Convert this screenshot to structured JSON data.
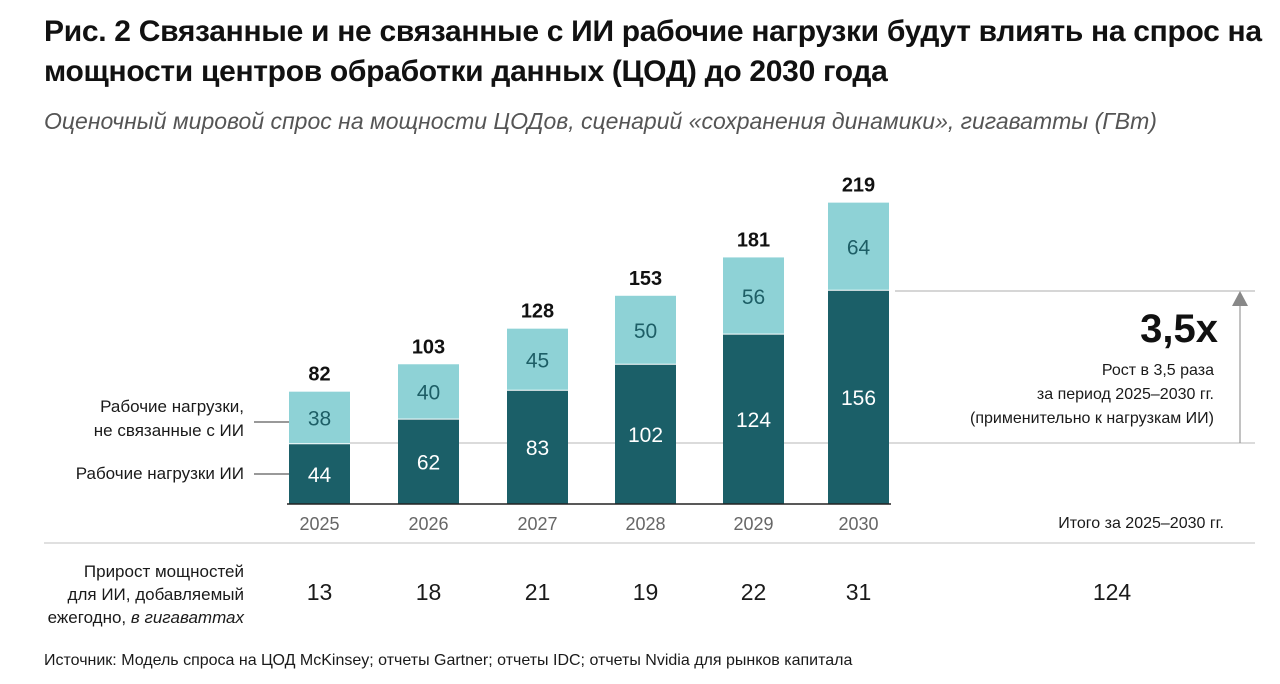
{
  "title": "Рис. 2 Связанные и не связанные с ИИ рабочие нагрузки будут влиять на спрос на мощности центров обработки данных (ЦОД) до 2030 года",
  "subtitle": "Оценочный мировой спрос на мощности ЦОДов, сценарий «сохранения динамики», гигаватты (ГВт)",
  "colors": {
    "ai": "#1b5f68",
    "non_ai": "#8ed2d6"
  },
  "chart_data": {
    "type": "bar",
    "stacked": true,
    "title": "Рис. 2 Связанные и не связанные с ИИ рабочие нагрузки будут влиять на спрос на мощности центров обработки данных (ЦОД) до 2030 года",
    "subtitle": "Оценочный мировой спрос на мощности ЦОДов, сценарий «сохранения динамики», гигаватты (ГВт)",
    "categories": [
      "2025",
      "2026",
      "2027",
      "2028",
      "2029",
      "2030"
    ],
    "series": [
      {
        "name": "Рабочие нагрузки ИИ",
        "values": [
          44,
          62,
          83,
          102,
          124,
          156
        ]
      },
      {
        "name": "Рабочие нагрузки, не связанные с ИИ",
        "values": [
          38,
          40,
          45,
          50,
          56,
          64
        ]
      }
    ],
    "totals": [
      82,
      103,
      128,
      153,
      181,
      219
    ],
    "ylim": [
      0,
      219
    ],
    "xlabel": "",
    "ylabel": "ГВт",
    "grid": false,
    "legend": [
      "Рабочие нагрузки,\nне связанные с ИИ",
      "Рабочие нагрузки ИИ"
    ],
    "legend_position": "left",
    "annotation": {
      "headline": "3,5x",
      "lines": [
        "Рост в 3,5 раза",
        "за период 2025–2030 гг.",
        "(применительно к нагрузкам ИИ)"
      ]
    }
  },
  "legend_labels": {
    "non_ai_line1": "Рабочие нагрузки,",
    "non_ai_line2": "не связанные с ИИ",
    "ai": "Рабочие нагрузки ИИ"
  },
  "annotation": {
    "headline": "3,5x",
    "line1": "Рост в 3,5 раза",
    "line2": "за период 2025–2030 гг.",
    "line3": "(применительно к нагрузкам ИИ)"
  },
  "increment_table": {
    "total_header": "Итого за 2025–2030 гг.",
    "label_line1": "Прирост мощностей",
    "label_line2": "для ИИ, добавляемый",
    "label_line3_plain": "ежегодно, ",
    "label_line3_italic": "в гигаваттах",
    "values": [
      "13",
      "18",
      "21",
      "19",
      "22",
      "31"
    ],
    "total": "124"
  },
  "source": "Источник: Модель спроса на ЦОД McKinsey; отчеты Gartner; отчеты IDC; отчеты Nvidia для рынков капитала"
}
